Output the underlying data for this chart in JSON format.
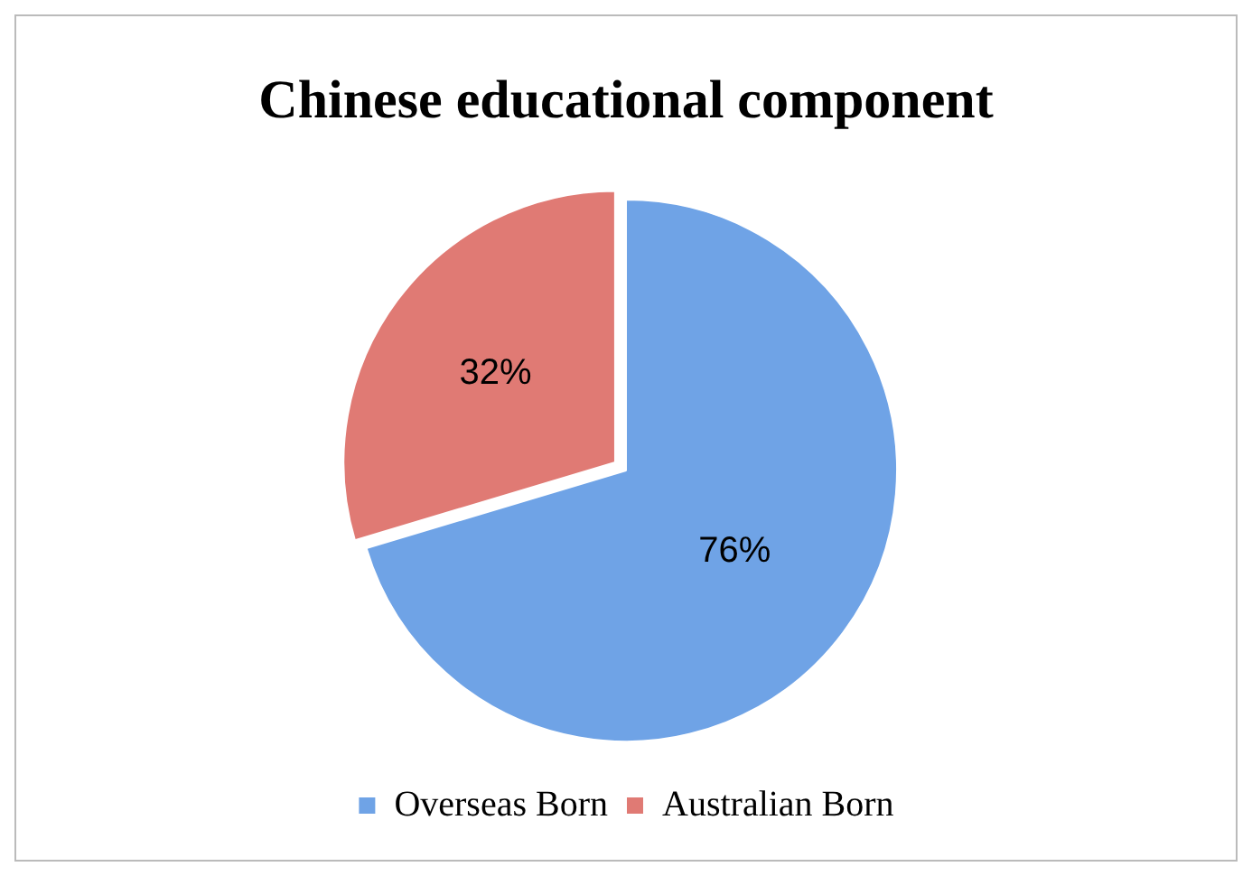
{
  "chart_data": {
    "type": "pie",
    "title": "Chinese educational component",
    "categories": [
      "Overseas Born",
      "Australian Born"
    ],
    "values": [
      76,
      32
    ],
    "colors": [
      "#6fa3e6",
      "#e07a74"
    ],
    "value_labels": [
      "76%",
      "32%"
    ],
    "legend": "bottom"
  }
}
